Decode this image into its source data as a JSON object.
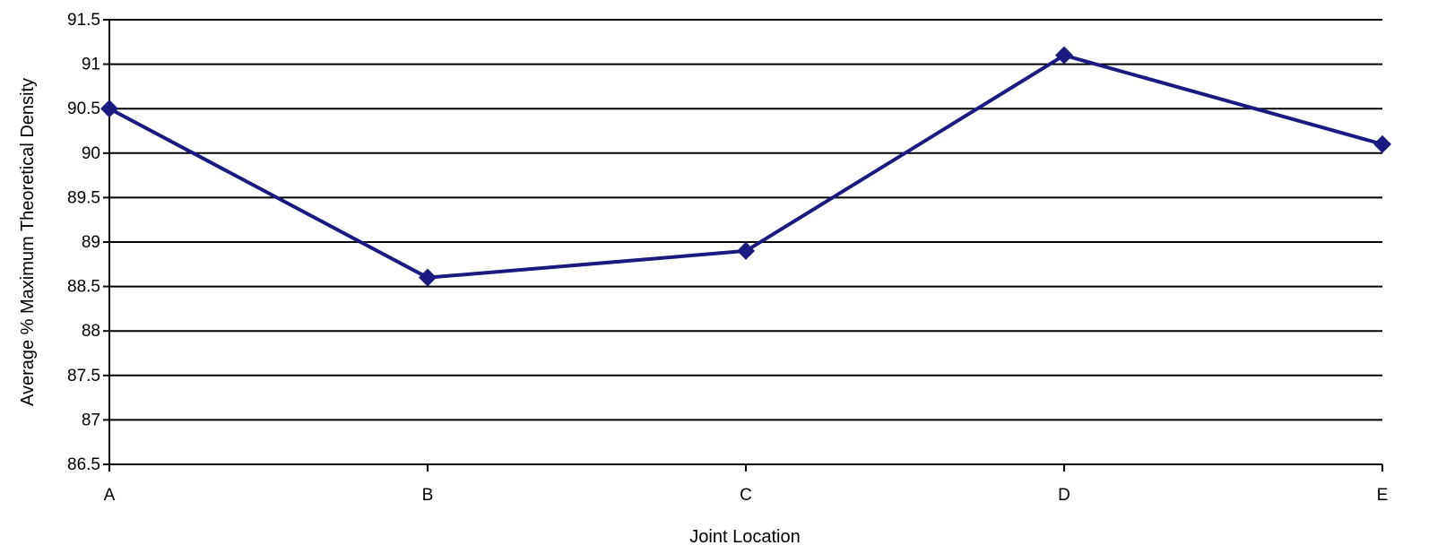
{
  "chart_data": {
    "type": "line",
    "title": "",
    "xlabel": "Joint Location",
    "ylabel": "Average % Maximum Theoretical Density",
    "categories": [
      "A",
      "B",
      "C",
      "D",
      "E"
    ],
    "series": [
      {
        "values": [
          90.5,
          88.6,
          88.9,
          91.1,
          90.1
        ]
      }
    ],
    "ylim": [
      86.5,
      91.5
    ],
    "yticks": [
      86.5,
      87,
      87.5,
      88,
      88.5,
      89,
      89.5,
      90,
      90.5,
      91,
      91.5
    ],
    "ytick_labels": [
      "86.5",
      "87",
      "87.5",
      "88",
      "88.5",
      "89",
      "89.5",
      "90",
      "90.5",
      "91",
      "91.5"
    ],
    "grid": true,
    "legend": "none",
    "marker": "diamond",
    "line_color": "#1a1a80",
    "marker_color": "#1a1a80",
    "grid_color": "#000000"
  }
}
